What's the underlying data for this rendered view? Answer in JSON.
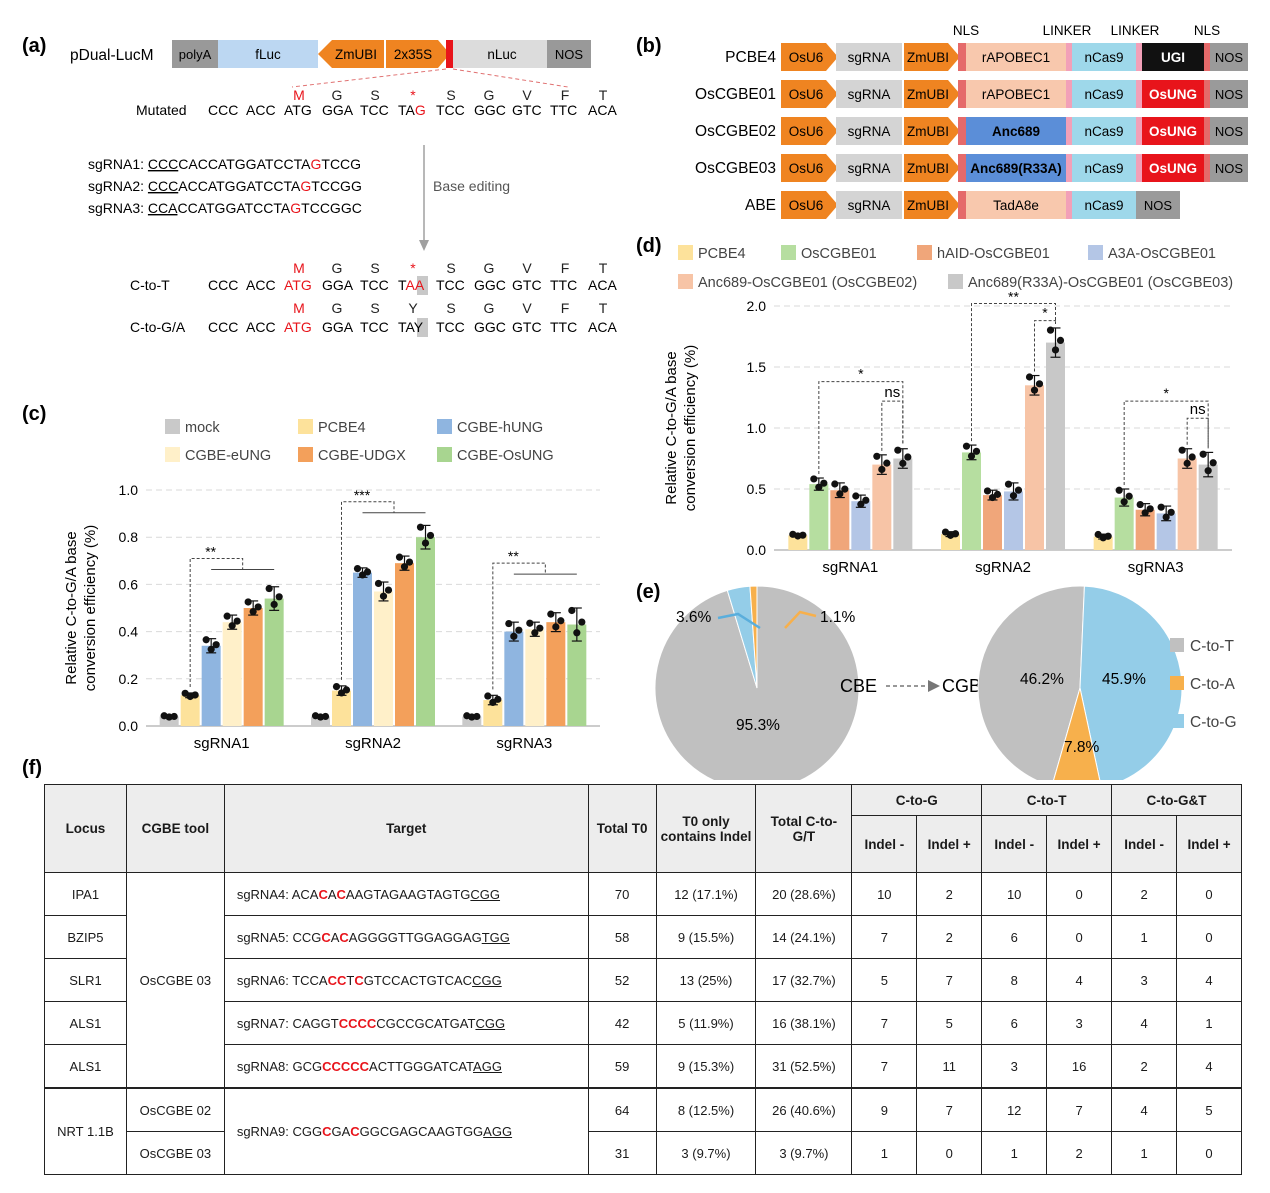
{
  "panels": {
    "a": "(a)",
    "b": "(b)",
    "c": "(c)",
    "d": "(d)",
    "e": "(e)",
    "f": "(f)"
  },
  "panel_a": {
    "construct_name": "pDual-LucM",
    "blocks": [
      "polyA",
      "fLuc",
      "ZmUBI",
      "2x35S",
      "nLuc",
      "NOS"
    ],
    "mutated_label": "Mutated",
    "aa_top": [
      "M",
      "G",
      "S",
      "*",
      "S",
      "G",
      "V",
      "F",
      "T"
    ],
    "mutated_seq": [
      "CCC",
      "ACC",
      "ATG",
      "GGA",
      "TCC",
      "TAG",
      "TCC",
      "GGC",
      "GTC",
      "TTC",
      "ACA"
    ],
    "sgrnas": [
      {
        "label": "sgRNA1:",
        "pam": "CCC",
        "pre": "CACCATGGATCCTA",
        "mut": "G",
        "post": "TCCG"
      },
      {
        "label": "sgRNA2:",
        "pam": "CCC",
        "pre": "ACCATGGATCCTA",
        "mut": "G",
        "post": "TCCGG"
      },
      {
        "label": "sgRNA3:",
        "pam": "CCA",
        "pre": "CCATGGATCCTA",
        "mut": "G",
        "post": "TCCGGC"
      }
    ],
    "arrow_label": "Base editing",
    "c_to_t": {
      "label": "C-to-T",
      "aa": [
        "M",
        "G",
        "S",
        "*",
        "S",
        "G",
        "V",
        "F",
        "T"
      ],
      "codon": "TAA"
    },
    "c_to_ga": {
      "label": "C-to-G/A",
      "aa": [
        "M",
        "G",
        "S",
        "Y",
        "S",
        "G",
        "V",
        "F",
        "T"
      ],
      "codon": "TAY"
    }
  },
  "panel_b": {
    "headers": [
      "NLS",
      "LINKER",
      "LINKER",
      "NLS"
    ],
    "rows": [
      {
        "name": "PCBE4",
        "deam": "rAPOBEC1",
        "glyc": "UGI",
        "tail": "NOS"
      },
      {
        "name": "OsCGBE01",
        "deam": "rAPOBEC1",
        "glyc": "OsUNG",
        "tail": "NOS"
      },
      {
        "name": "OsCGBE02",
        "deam": "Anc689",
        "glyc": "OsUNG",
        "tail": "NOS"
      },
      {
        "name": "OsCGBE03",
        "deam": "Anc689(R33A)",
        "glyc": "OsUNG",
        "tail": "NOS"
      },
      {
        "name": "ABE",
        "deam": "TadA8e",
        "glyc": "",
        "tail": "NOS"
      }
    ],
    "common": {
      "promoter": "OsU6",
      "guide": "sgRNA",
      "pol2": "ZmUBI",
      "cas": "nCas9"
    }
  },
  "colors": {
    "mock": "#c9c9c9",
    "PCBE4": "#fde29b",
    "CGBE-hUNG": "#8fb5e0",
    "CGBE-eUNG": "#fff0c9",
    "CGBE-UDGX": "#f3a05b",
    "CGBE-OsUNG": "#a8d590",
    "OsCGBE01": "#b6dea0",
    "hAID-OsCGBE01": "#f0a67a",
    "A3A-OsCGBE01": "#b4c6e6",
    "OsCGBE02": "#f7c4a6",
    "OsCGBE03": "#c8c8c8",
    "orange": "#ef8421",
    "red": "#e8141b"
  },
  "chart_data": [
    {
      "id": "c",
      "type": "bar",
      "ylabel": "Relative C-to-G/A base conversion efficiency (%)",
      "ylim": [
        0,
        1.0
      ],
      "yticks": [
        "0.0",
        "0.2",
        "0.4",
        "0.6",
        "0.8",
        "1.0"
      ],
      "categories": [
        "sgRNA1",
        "sgRNA2",
        "sgRNA3"
      ],
      "series": [
        {
          "name": "mock",
          "values": [
            0.04,
            0.04,
            0.04
          ],
          "err": [
            0.004,
            0.004,
            0.004
          ]
        },
        {
          "name": "PCBE4",
          "values": [
            0.13,
            0.15,
            0.11
          ],
          "err": [
            0.01,
            0.02,
            0.02
          ]
        },
        {
          "name": "CGBE-hUNG",
          "values": [
            0.34,
            0.65,
            0.4
          ],
          "err": [
            0.03,
            0.02,
            0.04
          ]
        },
        {
          "name": "CGBE-eUNG",
          "values": [
            0.44,
            0.57,
            0.41
          ],
          "err": [
            0.03,
            0.04,
            0.03
          ]
        },
        {
          "name": "CGBE-UDGX",
          "values": [
            0.5,
            0.69,
            0.44
          ],
          "err": [
            0.03,
            0.03,
            0.04
          ]
        },
        {
          "name": "CGBE-OsUNG",
          "values": [
            0.54,
            0.8,
            0.43
          ],
          "err": [
            0.05,
            0.05,
            0.07
          ]
        }
      ],
      "legend": [
        "mock",
        "PCBE4",
        "CGBE-hUNG",
        "CGBE-eUNG",
        "CGBE-UDGX",
        "CGBE-OsUNG"
      ],
      "significance": [
        "**",
        "***",
        "**"
      ]
    },
    {
      "id": "d",
      "type": "bar",
      "ylabel": "Relative C-to-G/A base conversion efficiency (%)",
      "ylim": [
        0,
        2.0
      ],
      "yticks": [
        "0.0",
        "0.5",
        "1.0",
        "1.5",
        "2.0"
      ],
      "categories": [
        "sgRNA1",
        "sgRNA2",
        "sgRNA3"
      ],
      "series": [
        {
          "name": "PCBE4",
          "values": [
            0.12,
            0.13,
            0.11
          ],
          "err": [
            0.01,
            0.02,
            0.02
          ]
        },
        {
          "name": "OsCGBE01",
          "values": [
            0.54,
            0.8,
            0.43
          ],
          "err": [
            0.05,
            0.06,
            0.07
          ]
        },
        {
          "name": "hAID-OsCGBE01",
          "values": [
            0.49,
            0.45,
            0.33
          ],
          "err": [
            0.06,
            0.04,
            0.05
          ]
        },
        {
          "name": "A3A-OsCGBE01",
          "values": [
            0.4,
            0.48,
            0.3
          ],
          "err": [
            0.05,
            0.07,
            0.06
          ]
        },
        {
          "name": "Anc689-OsCGBE01 (OsCGBE02)",
          "values": [
            0.7,
            1.35,
            0.75
          ],
          "err": [
            0.08,
            0.08,
            0.08
          ]
        },
        {
          "name": "Anc689(R33A)-OsCGBE01 (OsCGBE03)",
          "values": [
            0.75,
            1.7,
            0.7
          ],
          "err": [
            0.08,
            0.12,
            0.1
          ]
        }
      ],
      "legend": [
        "PCBE4",
        "OsCGBE01",
        "hAID-OsCGBE01",
        "A3A-OsCGBE01",
        "Anc689-OsCGBE01 (OsCGBE02)",
        "Anc689(R33A)-OsCGBE01 (OsCGBE03)"
      ],
      "significance": [
        "*",
        "ns",
        "**",
        "*",
        "*",
        "ns"
      ]
    },
    {
      "id": "e-cbe",
      "type": "pie",
      "values": [
        95.3,
        3.6,
        1.1
      ],
      "labels": [
        "95.3%",
        "3.6%",
        "1.1%"
      ],
      "categories": [
        "C-to-T",
        "C-to-G",
        "C-to-A"
      ]
    },
    {
      "id": "e-cgbe",
      "type": "pie",
      "values": [
        46.2,
        45.9,
        7.8
      ],
      "labels": [
        "46.2%",
        "45.9%",
        "7.8%"
      ],
      "categories": [
        "C-to-T",
        "C-to-G",
        "C-to-A"
      ],
      "legend": [
        "C-to-T",
        "C-to-A",
        "C-to-G"
      ]
    }
  ],
  "panel_e": {
    "from": "CBE",
    "to": "CGBE"
  },
  "table": {
    "headers": {
      "locus": "Locus",
      "tool": "CGBE tool",
      "target": "Target",
      "total_t0": "Total T0",
      "indel_only": "T0 only contains Indel",
      "total_cgt": "Total C-to-G/T",
      "groups": [
        "C-to-G",
        "C-to-T",
        "C-to-G&T"
      ],
      "sub": [
        "Indel -",
        "Indel +"
      ]
    },
    "rows": [
      {
        "locus": "IPA1",
        "tool": "OsCGBE 03",
        "sg": "sgRNA4:",
        "seq": [
          [
            "ACA",
            0
          ],
          [
            "C",
            1
          ],
          [
            "A",
            0
          ],
          [
            "C",
            1
          ],
          [
            "AAGTAGAAGTAGTG",
            0
          ],
          [
            "CGG",
            2
          ]
        ],
        "t0": "70",
        "indel": "12 (17.1%)",
        "cgt": "20 (28.6%)",
        "v": [
          "10",
          "2",
          "10",
          "0",
          "2",
          "0"
        ]
      },
      {
        "locus": "BZIP5",
        "sg": "sgRNA5:",
        "seq": [
          [
            "CCG",
            0
          ],
          [
            "C",
            1
          ],
          [
            "A",
            0
          ],
          [
            "C",
            1
          ],
          [
            "AGGGGTTGGAGGAG",
            0
          ],
          [
            "TGG",
            2
          ]
        ],
        "t0": "58",
        "indel": "9 (15.5%)",
        "cgt": "14 (24.1%)",
        "v": [
          "7",
          "2",
          "6",
          "0",
          "1",
          "0"
        ]
      },
      {
        "locus": "SLR1",
        "sg": "sgRNA6:",
        "seq": [
          [
            "TCCA",
            0
          ],
          [
            "CC",
            1
          ],
          [
            "T",
            0
          ],
          [
            "C",
            1
          ],
          [
            "GTCCACTGTCAC",
            0
          ],
          [
            "CGG",
            2
          ]
        ],
        "t0": "52",
        "indel": "13 (25%)",
        "cgt": "17 (32.7%)",
        "v": [
          "5",
          "7",
          "8",
          "4",
          "3",
          "4"
        ]
      },
      {
        "locus": "ALS1",
        "sg": "sgRNA7:",
        "seq": [
          [
            "CAGGT",
            0
          ],
          [
            "CCCC",
            1
          ],
          [
            "CGCCGCATGAT",
            0
          ],
          [
            "CGG",
            2
          ]
        ],
        "t0": "42",
        "indel": "5 (11.9%)",
        "cgt": "16 (38.1%)",
        "v": [
          "7",
          "5",
          "6",
          "3",
          "4",
          "1"
        ]
      },
      {
        "locus": "ALS1",
        "sg": "sgRNA8:",
        "seq": [
          [
            "GCG",
            0
          ],
          [
            "CCCCC",
            1
          ],
          [
            "ACTTGGGATCAT",
            0
          ],
          [
            "AGG",
            2
          ]
        ],
        "t0": "59",
        "indel": "9 (15.3%)",
        "cgt": "31 (52.5%)",
        "v": [
          "7",
          "11",
          "3",
          "16",
          "2",
          "4"
        ]
      },
      {
        "locus": "NRT 1.1B",
        "tool": "OsCGBE 02",
        "sg": "sgRNA9:",
        "seq": [
          [
            "CGG",
            0
          ],
          [
            "C",
            1
          ],
          [
            "GA",
            0
          ],
          [
            "C",
            1
          ],
          [
            "GGCGAGCAAGTGG",
            0
          ],
          [
            "AGG",
            2
          ]
        ],
        "t0": "64",
        "indel": "8 (12.5%)",
        "cgt": "26 (40.6%)",
        "v": [
          "9",
          "7",
          "12",
          "7",
          "4",
          "5"
        ]
      },
      {
        "tool": "OsCGBE 03",
        "t0": "31",
        "indel": "3 (9.7%)",
        "cgt": "3 (9.7%)",
        "v": [
          "1",
          "0",
          "1",
          "2",
          "1",
          "0"
        ]
      }
    ]
  }
}
